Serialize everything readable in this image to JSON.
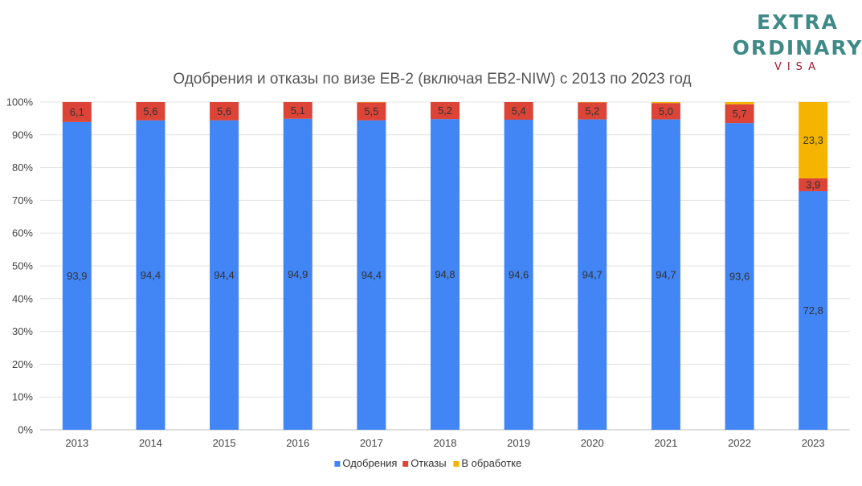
{
  "logo": {
    "line1": "EXTRA",
    "line2": "ORDINARY",
    "line3": "VISA"
  },
  "chart_data": {
    "type": "bar",
    "stacked": true,
    "title": "Одобрения и отказы по визе EB-2 (включая EB2-NIW) с 2013 по 2023 год",
    "xlabel": "",
    "ylabel": "",
    "ylim": [
      0,
      100
    ],
    "yticks": [
      "0%",
      "10%",
      "20%",
      "30%",
      "40%",
      "50%",
      "60%",
      "70%",
      "80%",
      "90%",
      "100%"
    ],
    "grid": true,
    "legend_position": "bottom",
    "categories": [
      "2013",
      "2014",
      "2015",
      "2016",
      "2017",
      "2018",
      "2019",
      "2020",
      "2021",
      "2022",
      "2023"
    ],
    "series": [
      {
        "name": "Одобрения",
        "color": "#4285f4",
        "values": [
          93.9,
          94.4,
          94.4,
          94.9,
          94.4,
          94.8,
          94.6,
          94.7,
          94.7,
          93.6,
          72.8
        ],
        "labels": [
          "93,9",
          "94,4",
          "94,4",
          "94,9",
          "94,4",
          "94,8",
          "94,6",
          "94,7",
          "94,7",
          "93,6",
          "72,8"
        ]
      },
      {
        "name": "Отказы",
        "color": "#db4437",
        "values": [
          6.1,
          5.6,
          5.6,
          5.1,
          5.5,
          5.2,
          5.4,
          5.2,
          5.0,
          5.7,
          3.9
        ],
        "labels": [
          "6,1",
          "5,6",
          "5,6",
          "5,1",
          "5,5",
          "5,2",
          "5,4",
          "5,2",
          "5,0",
          "5,7",
          "3,9"
        ]
      },
      {
        "name": "В обработке",
        "color": "#f4b400",
        "values": [
          0.0,
          0.0,
          0.0,
          0.0,
          0.1,
          0.0,
          0.0,
          0.1,
          0.3,
          0.7,
          23.3
        ],
        "labels": [
          "",
          "",
          "",
          "",
          "",
          "",
          "",
          "",
          "",
          "",
          "23,3"
        ]
      }
    ]
  }
}
